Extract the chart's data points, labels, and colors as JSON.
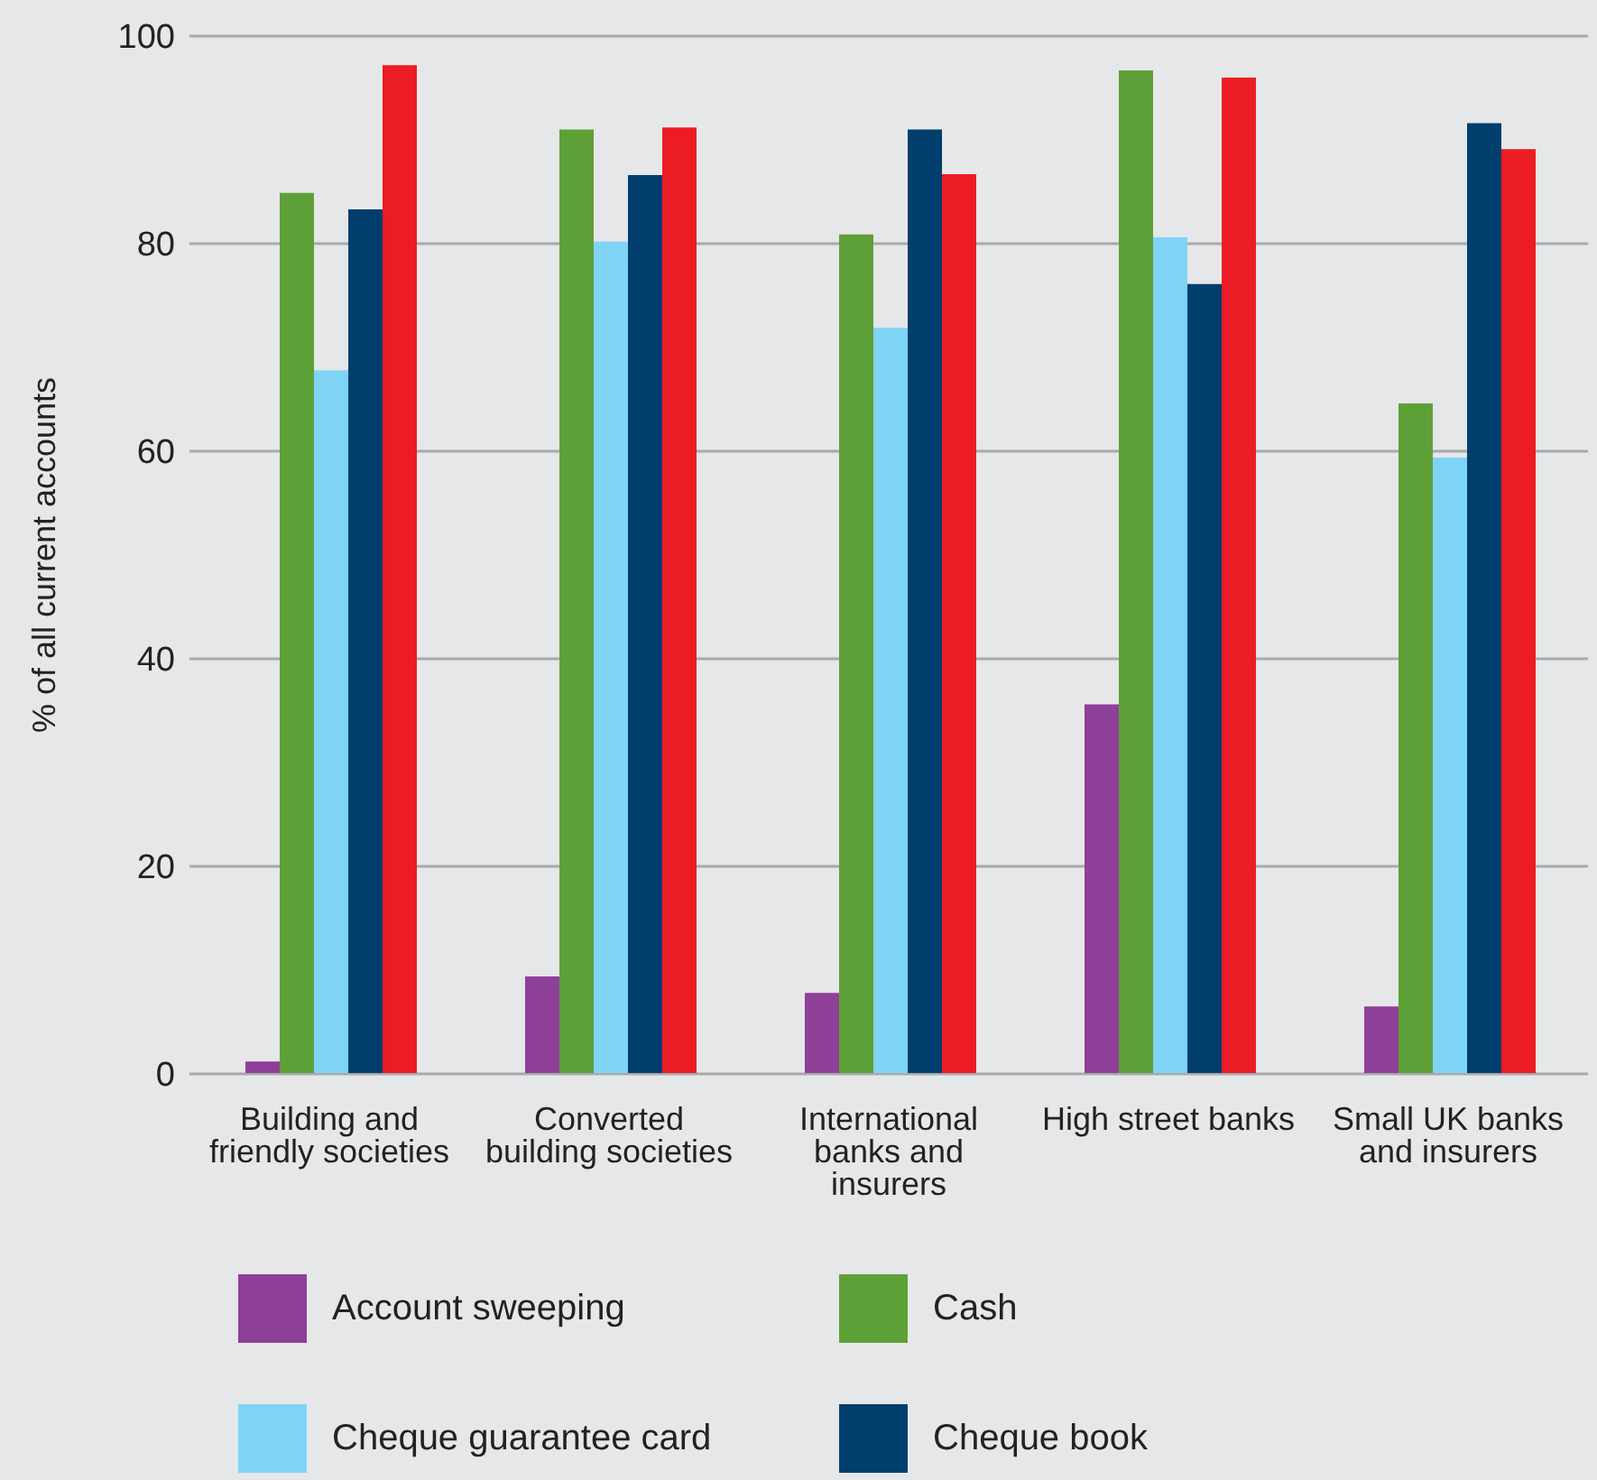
{
  "chart_data": {
    "type": "bar",
    "ylabel": "% of all current accounts",
    "categories": [
      "Building and friendly societies",
      "Converted building societies",
      "International banks and insurers",
      "High street banks",
      "Small UK banks and insurers"
    ],
    "series": [
      {
        "name": "Account sweeping",
        "color": "#8e3f98",
        "values": [
          1.2,
          9.4,
          7.8,
          35.6,
          6.5
        ]
      },
      {
        "name": "Cash",
        "color": "#5ea038",
        "values": [
          84.9,
          91,
          80.9,
          96.7,
          64.6
        ]
      },
      {
        "name": "Cheque guarantee card",
        "color": "#7fd4f6",
        "values": [
          67.8,
          80.2,
          71.9,
          80.6,
          59.4
        ]
      },
      {
        "name": "Cheque book",
        "color": "#003e6e",
        "values": [
          83.3,
          86.6,
          91,
          76.1,
          91.6
        ]
      },
      {
        "color": "#ec1c24",
        "values": [
          97.2,
          91.2,
          86.7,
          96,
          89.1
        ]
      }
    ],
    "ylim": [
      0,
      100
    ],
    "yticks": [
      0,
      20,
      40,
      60,
      80,
      100
    ],
    "grid": "y",
    "legend": "bottom"
  }
}
